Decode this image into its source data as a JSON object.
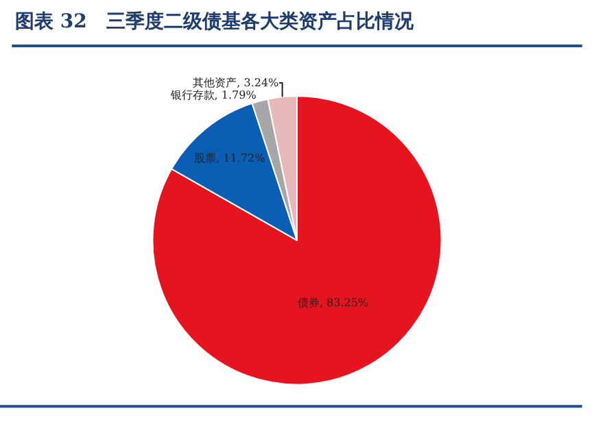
{
  "chart_data": {
    "type": "pie",
    "title": "图表 32　三季度二级债基各大类资产占比情况",
    "categories": [
      "债券",
      "股票",
      "银行存款",
      "其他资产"
    ],
    "values": [
      83.25,
      11.72,
      1.79,
      3.24
    ],
    "colors": [
      "#e5141e",
      "#0a5fb5",
      "#a6a6a6",
      "#e8b9ba"
    ],
    "value_labels": [
      "83.25%",
      "11.72%",
      "1.79%",
      "3.24%"
    ],
    "legend": false
  }
}
